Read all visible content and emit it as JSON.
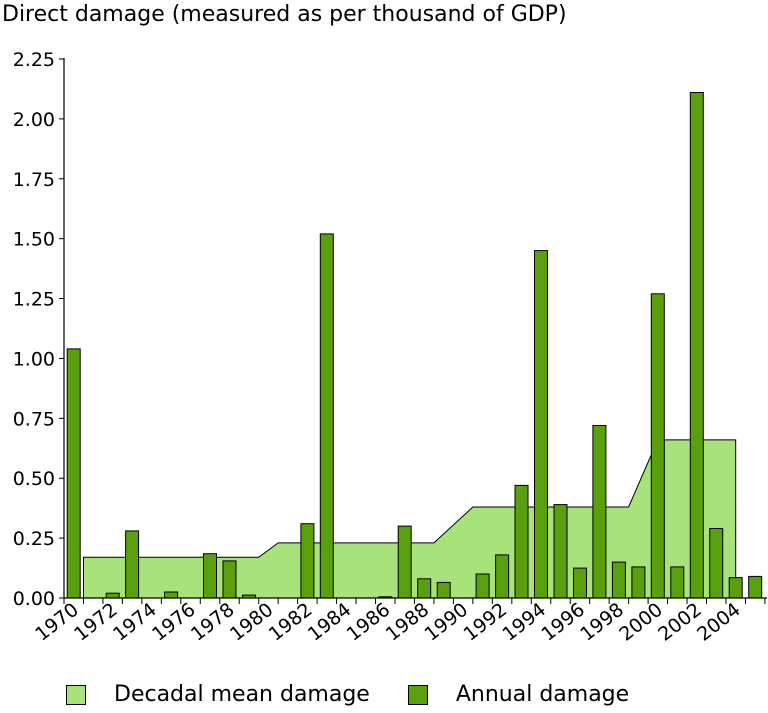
{
  "chart_data": {
    "type": "bar",
    "title": "Direct damage (measured as per thousand of GDP)",
    "ylim": [
      0,
      2.25
    ],
    "yticks": [
      "0.00",
      "0.25",
      "0.50",
      "0.75",
      "1.00",
      "1.25",
      "1.50",
      "1.75",
      "2.00",
      "2.25"
    ],
    "xtick_labels": [
      "1970",
      "1972",
      "1974",
      "1976",
      "1978",
      "1980",
      "1982",
      "1984",
      "1986",
      "1988",
      "1990",
      "1992",
      "1994",
      "1996",
      "1998",
      "2000",
      "2002",
      "2004"
    ],
    "legend_position": "bottom",
    "series": [
      {
        "name": "Annual damage",
        "kind": "bar",
        "color": "#5aa00e",
        "x": [
          1970,
          1971,
          1972,
          1973,
          1974,
          1975,
          1976,
          1977,
          1978,
          1979,
          1980,
          1981,
          1982,
          1983,
          1984,
          1985,
          1986,
          1987,
          1988,
          1989,
          1990,
          1991,
          1992,
          1993,
          1994,
          1995,
          1996,
          1997,
          1998,
          1999,
          2000,
          2001,
          2002,
          2003,
          2004,
          2005
        ],
        "values": [
          1.04,
          0,
          0.02,
          0.28,
          0,
          0.025,
          0,
          0.185,
          0.155,
          0.012,
          0,
          0,
          0.31,
          1.52,
          0,
          0,
          0.005,
          0.3,
          0.08,
          0.065,
          0,
          0.1,
          0.18,
          0.47,
          1.45,
          0.39,
          0.125,
          0.72,
          0.15,
          0.13,
          1.27,
          0.13,
          2.11,
          0.29,
          0.085,
          0.09
        ]
      },
      {
        "name": "Decadal mean damage",
        "kind": "area",
        "color": "#a8e27a",
        "points": [
          [
            1970.5,
            0.17
          ],
          [
            1979.5,
            0.17
          ],
          [
            1980.5,
            0.23
          ],
          [
            1988.5,
            0.23
          ],
          [
            1990.5,
            0.38
          ],
          [
            1998.5,
            0.38
          ],
          [
            2000.0,
            0.66
          ],
          [
            2004.0,
            0.66
          ]
        ]
      }
    ]
  },
  "legend": {
    "decadal_label": "Decadal mean damage",
    "annual_label": "Annual damage"
  }
}
